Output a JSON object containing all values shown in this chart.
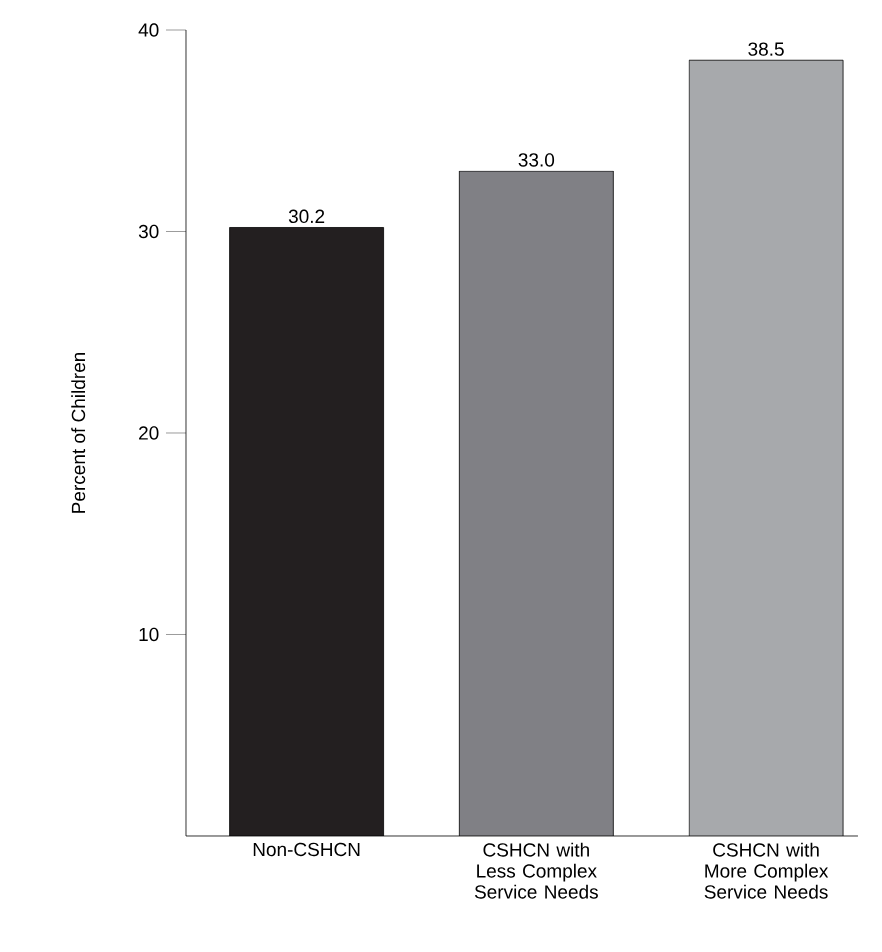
{
  "chart_data": {
    "type": "bar",
    "ylabel": "Percent of Children",
    "categories": [
      "Non-CSHCN",
      "CSHCN with Less Complex Service Needs",
      "CSHCN with More Complex Service Needs"
    ],
    "values": [
      30.2,
      33.0,
      38.5
    ],
    "colors": [
      "#231f20",
      "#808085",
      "#a7a9ac"
    ],
    "value_labels": [
      "30.2",
      "33.0",
      "38.5"
    ],
    "ylim": [
      0,
      40
    ],
    "yticks": [
      10,
      20,
      30,
      40
    ],
    "grid": false
  }
}
